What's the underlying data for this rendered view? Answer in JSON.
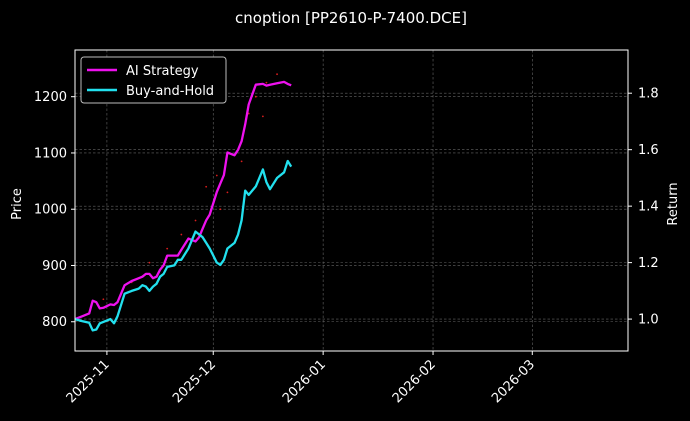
{
  "chart_data": {
    "type": "line",
    "title": "cnoption [PP2610-P-7400.DCE]",
    "xlabel": "",
    "ylabel_left": "Price",
    "ylabel_right": "Return",
    "x_range": [
      "2025-10-23",
      "2026-03-28"
    ],
    "y_left_range": [
      748,
      1283
    ],
    "y_right_range": [
      0.887,
      1.953
    ],
    "x_ticks": [
      {
        "date": "2025-11-01",
        "label": "2025-11"
      },
      {
        "date": "2025-12-01",
        "label": "2025-12"
      },
      {
        "date": "2026-01-01",
        "label": "2026-01"
      },
      {
        "date": "2026-02-01",
        "label": "2026-02"
      },
      {
        "date": "2026-03-01",
        "label": "2026-03"
      }
    ],
    "y_left_ticks": [
      800,
      900,
      1000,
      1100,
      1200
    ],
    "y_right_ticks": [
      1.0,
      1.2,
      1.4,
      1.6,
      1.8
    ],
    "grid": true,
    "legend_position": "top-left",
    "colors": {
      "ai_strategy": "#ee11ee",
      "buy_and_hold": "#22e0ee",
      "background": "#000000",
      "text": "#ffffff",
      "grid": "#666666",
      "price_dots": "#ff2222"
    },
    "series": [
      {
        "name": "AI Strategy",
        "axis": "right",
        "x": [
          "2025-10-23",
          "2025-10-25",
          "2025-10-27",
          "2025-10-28",
          "2025-10-29",
          "2025-10-30",
          "2025-10-31",
          "2025-11-02",
          "2025-11-03",
          "2025-11-04",
          "2025-11-06",
          "2025-11-08",
          "2025-11-10",
          "2025-11-11",
          "2025-11-12",
          "2025-11-13",
          "2025-11-14",
          "2025-11-15",
          "2025-11-16",
          "2025-11-17",
          "2025-11-18",
          "2025-11-20",
          "2025-11-21",
          "2025-11-22",
          "2025-11-24",
          "2025-11-26",
          "2025-11-27",
          "2025-11-28",
          "2025-11-29",
          "2025-11-30",
          "2025-12-02",
          "2025-12-03",
          "2025-12-04",
          "2025-12-05",
          "2025-12-07",
          "2025-12-08",
          "2025-12-09",
          "2025-12-10",
          "2025-12-11",
          "2025-12-13",
          "2025-12-15",
          "2025-12-16",
          "2025-12-17",
          "2025-12-19",
          "2025-12-21",
          "2025-12-22",
          "2025-12-23"
        ],
        "y": [
          1.0,
          1.01,
          1.02,
          1.065,
          1.06,
          1.038,
          1.04,
          1.052,
          1.05,
          1.06,
          1.12,
          1.135,
          1.145,
          1.15,
          1.16,
          1.16,
          1.145,
          1.15,
          1.175,
          1.19,
          1.225,
          1.225,
          1.225,
          1.245,
          1.285,
          1.275,
          1.29,
          1.32,
          1.35,
          1.37,
          1.45,
          1.48,
          1.51,
          1.59,
          1.58,
          1.6,
          1.63,
          1.69,
          1.76,
          1.83,
          1.833,
          1.827,
          1.83,
          1.835,
          1.84,
          1.833,
          1.828
        ]
      },
      {
        "name": "Buy-and-Hold",
        "axis": "right",
        "x": [
          "2025-10-23",
          "2025-10-25",
          "2025-10-27",
          "2025-10-28",
          "2025-10-29",
          "2025-10-30",
          "2025-10-31",
          "2025-11-02",
          "2025-11-03",
          "2025-11-04",
          "2025-11-06",
          "2025-11-08",
          "2025-11-10",
          "2025-11-11",
          "2025-11-12",
          "2025-11-13",
          "2025-11-14",
          "2025-11-15",
          "2025-11-16",
          "2025-11-17",
          "2025-11-18",
          "2025-11-20",
          "2025-11-21",
          "2025-11-22",
          "2025-11-24",
          "2025-11-26",
          "2025-11-27",
          "2025-11-28",
          "2025-11-29",
          "2025-11-30",
          "2025-12-02",
          "2025-12-03",
          "2025-12-04",
          "2025-12-05",
          "2025-12-07",
          "2025-12-08",
          "2025-12-09",
          "2025-12-10",
          "2025-12-11",
          "2025-12-13",
          "2025-12-15",
          "2025-12-16",
          "2025-12-17",
          "2025-12-19",
          "2025-12-21",
          "2025-12-22",
          "2025-12-23"
        ],
        "y": [
          1.0,
          0.993,
          0.987,
          0.96,
          0.963,
          0.985,
          0.99,
          1.0,
          0.985,
          1.01,
          1.09,
          1.1,
          1.108,
          1.12,
          1.115,
          1.1,
          1.115,
          1.125,
          1.15,
          1.16,
          1.185,
          1.19,
          1.21,
          1.21,
          1.25,
          1.31,
          1.3,
          1.29,
          1.27,
          1.25,
          1.2,
          1.192,
          1.21,
          1.25,
          1.27,
          1.3,
          1.35,
          1.455,
          1.44,
          1.47,
          1.53,
          1.485,
          1.46,
          1.5,
          1.52,
          1.56,
          1.54
        ]
      }
    ],
    "price_points": {
      "axis": "left",
      "x": [
        "2025-10-31",
        "2025-11-08",
        "2025-11-13",
        "2025-11-18",
        "2025-11-22",
        "2025-11-26",
        "2025-11-29",
        "2025-12-02",
        "2025-12-03",
        "2025-12-05",
        "2025-12-09",
        "2025-12-11",
        "2025-12-13",
        "2025-12-15",
        "2025-12-16",
        "2025-12-19"
      ],
      "y": [
        840,
        870,
        905,
        930,
        955,
        980,
        1040,
        1060,
        1000,
        1030,
        1085,
        1170,
        1200,
        1165,
        1225,
        1240
      ]
    },
    "legend": [
      {
        "label": "AI Strategy",
        "series": 0
      },
      {
        "label": "Buy-and-Hold",
        "series": 1
      }
    ]
  }
}
